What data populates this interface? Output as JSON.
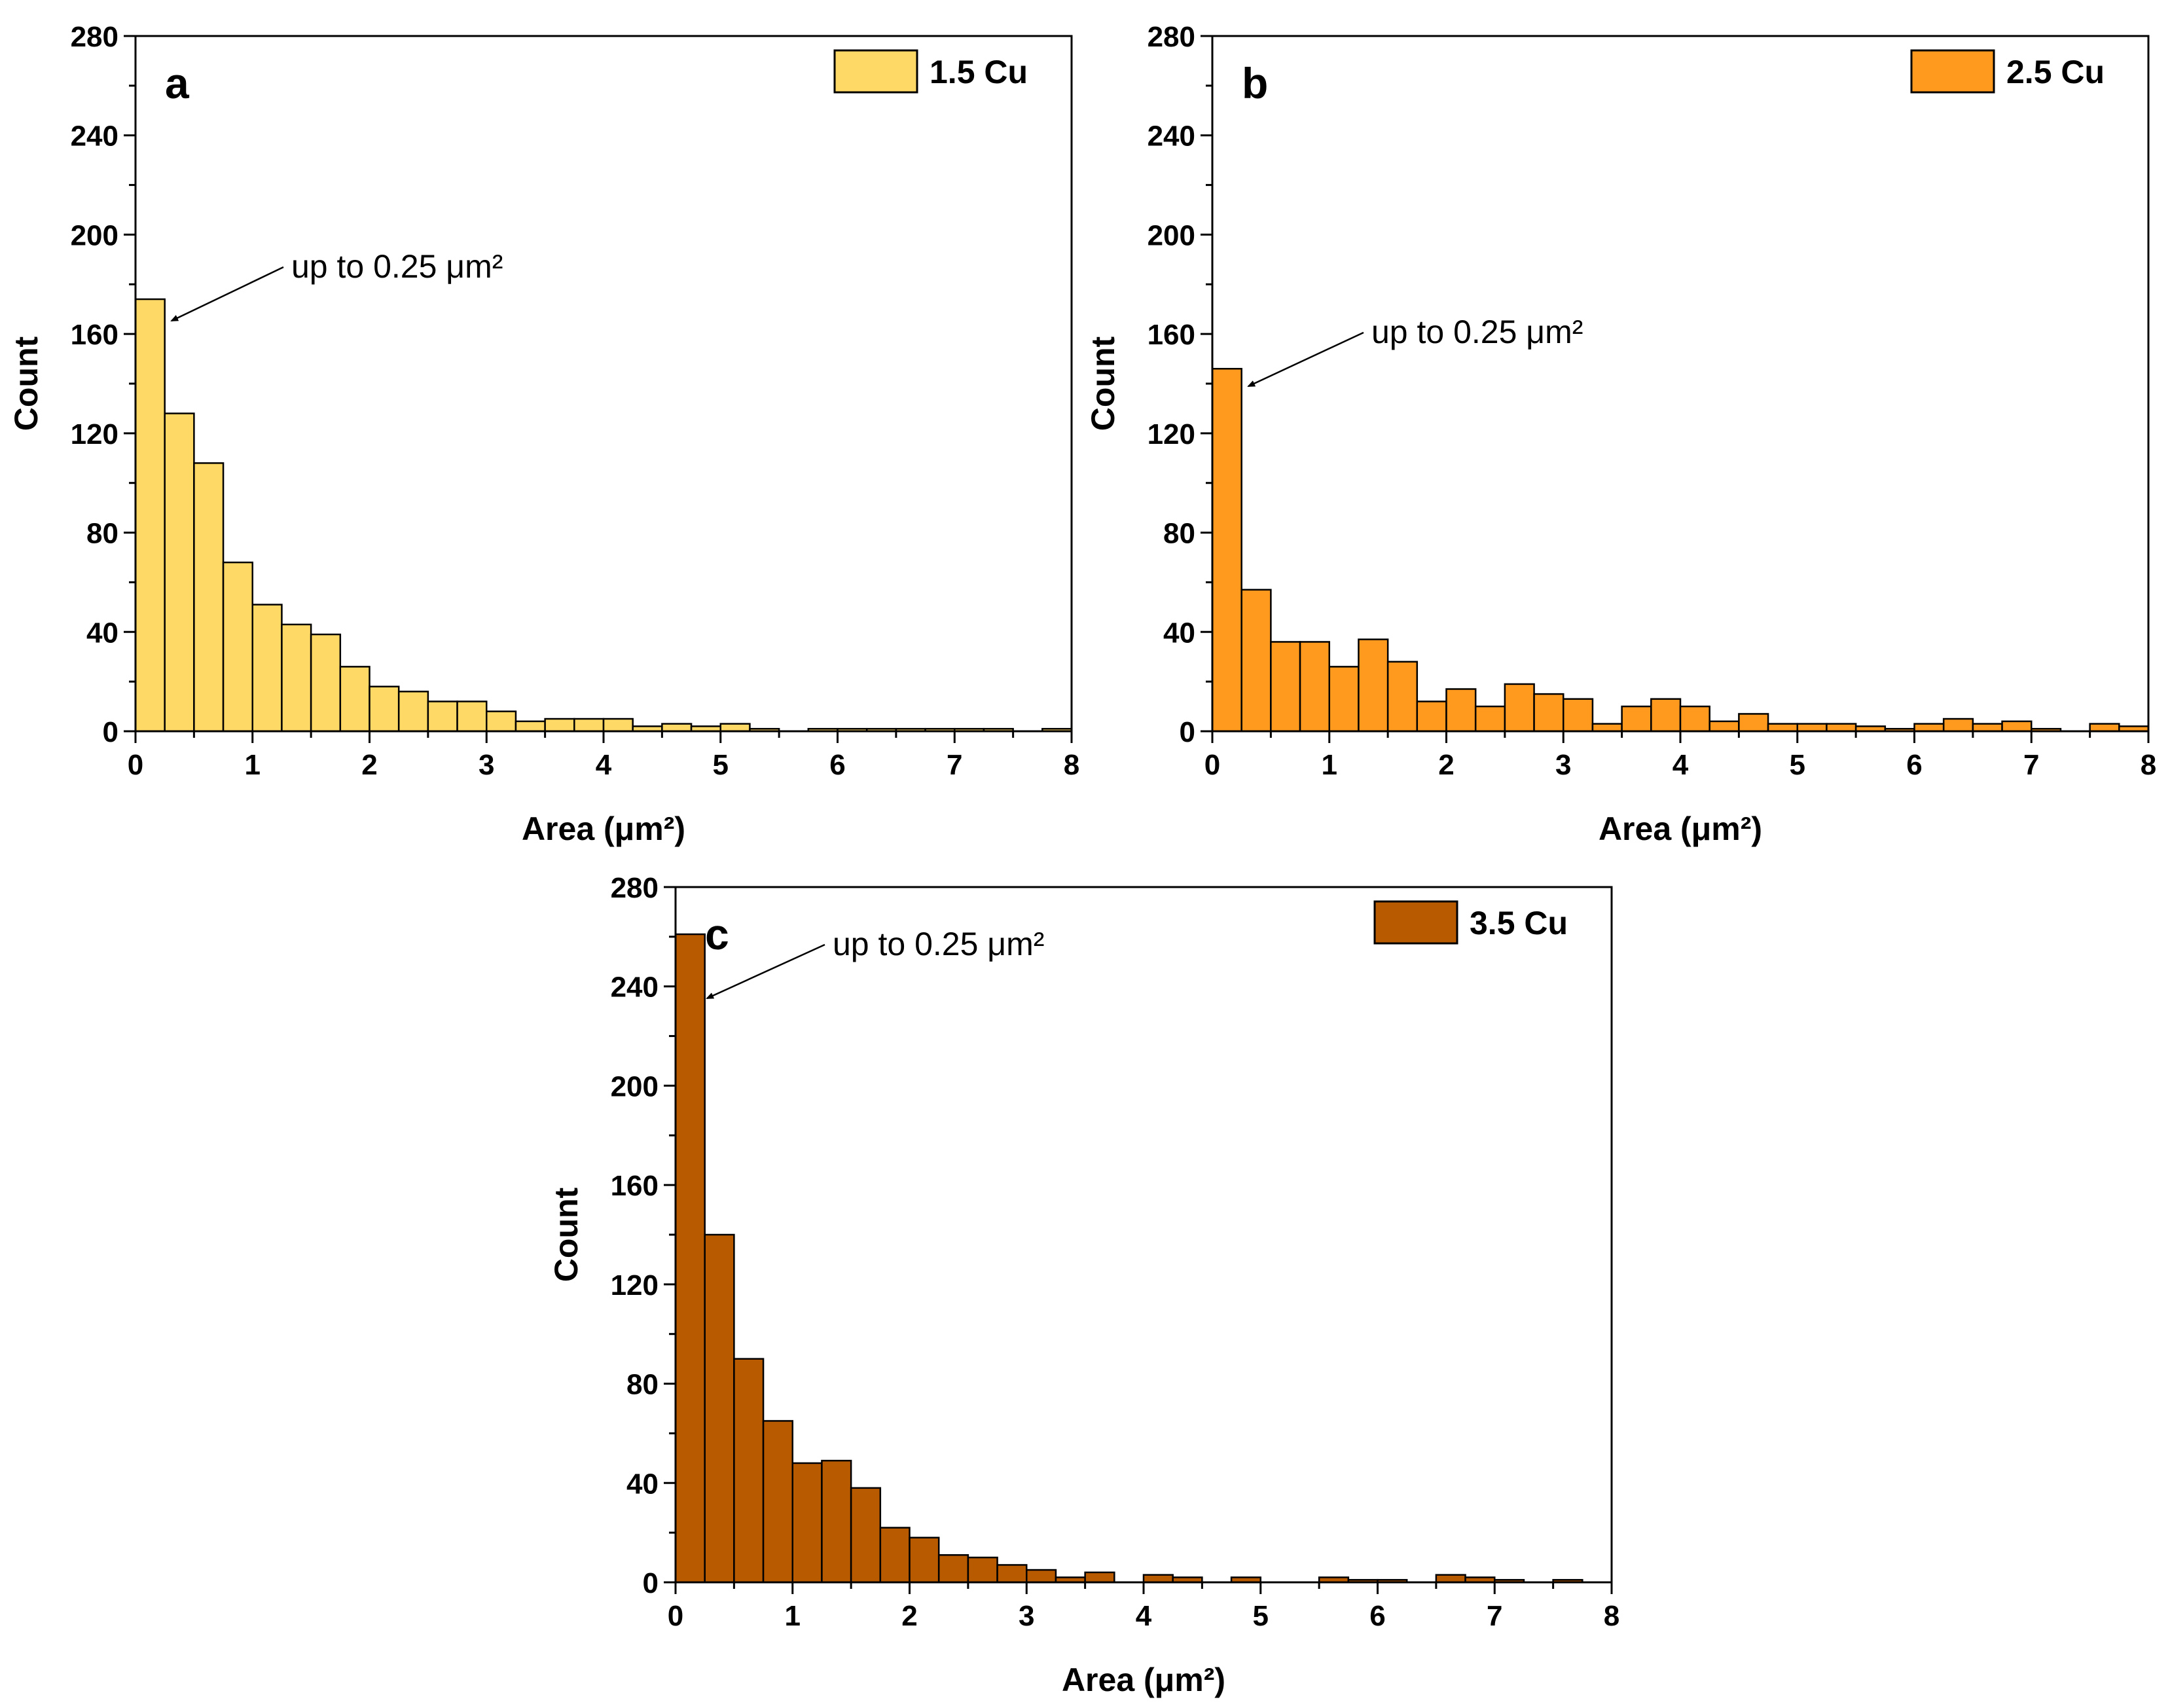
{
  "chart_data": [
    {
      "type": "bar",
      "panel": "a",
      "legend": "1.5 Cu",
      "color": "#FFD966",
      "xlabel": "Area (μm²)",
      "ylabel": "Count",
      "xlim": [
        0,
        8
      ],
      "ylim": [
        0,
        280
      ],
      "xticks": [
        "0",
        "1",
        "2",
        "3",
        "4",
        "5",
        "6",
        "7",
        "8"
      ],
      "yticks": [
        "0",
        "40",
        "80",
        "120",
        "160",
        "200",
        "240",
        "280"
      ],
      "bin_width": 0.25,
      "bin_starts": [
        0,
        0.25,
        0.5,
        0.75,
        1,
        1.25,
        1.5,
        1.75,
        2,
        2.25,
        2.5,
        2.75,
        3,
        3.25,
        3.5,
        3.75,
        4,
        4.25,
        4.5,
        4.75,
        5,
        5.25,
        5.5,
        5.75,
        6,
        6.25,
        6.5,
        6.75,
        7,
        7.25,
        7.5,
        7.75
      ],
      "values": [
        174,
        128,
        108,
        68,
        51,
        43,
        39,
        26,
        18,
        16,
        12,
        12,
        8,
        4,
        5,
        5,
        5,
        2,
        3,
        2,
        3,
        1,
        0,
        1,
        1,
        1,
        1,
        1,
        1,
        1,
        0,
        1
      ],
      "annotation": "up to 0.25 μm²",
      "legend_position": "top-right"
    },
    {
      "type": "bar",
      "panel": "b",
      "legend": "2.5 Cu",
      "color": "#FF9A1F",
      "xlabel": "Area (μm²)",
      "ylabel": "Count",
      "xlim": [
        0,
        8
      ],
      "ylim": [
        0,
        280
      ],
      "xticks": [
        "0",
        "1",
        "2",
        "3",
        "4",
        "5",
        "6",
        "7",
        "8"
      ],
      "yticks": [
        "0",
        "40",
        "80",
        "120",
        "160",
        "200",
        "240",
        "280"
      ],
      "bin_width": 0.25,
      "bin_starts": [
        0,
        0.25,
        0.5,
        0.75,
        1,
        1.25,
        1.5,
        1.75,
        2,
        2.25,
        2.5,
        2.75,
        3,
        3.25,
        3.5,
        3.75,
        4,
        4.25,
        4.5,
        4.75,
        5,
        5.25,
        5.5,
        5.75,
        6,
        6.25,
        6.5,
        6.75,
        7,
        7.25,
        7.5,
        7.75
      ],
      "values": [
        146,
        57,
        36,
        36,
        26,
        37,
        28,
        12,
        17,
        10,
        19,
        15,
        13,
        3,
        10,
        13,
        10,
        4,
        7,
        3,
        3,
        3,
        2,
        1,
        3,
        5,
        3,
        4,
        1,
        0,
        3,
        2
      ],
      "annotation": "up to 0.25 μm²",
      "legend_position": "top-right"
    },
    {
      "type": "bar",
      "panel": "c",
      "legend": "3.5 Cu",
      "color": "#B85A00",
      "xlabel": "Area (μm²)",
      "ylabel": "Count",
      "xlim": [
        0,
        8
      ],
      "ylim": [
        0,
        280
      ],
      "xticks": [
        "0",
        "1",
        "2",
        "3",
        "4",
        "5",
        "6",
        "7",
        "8"
      ],
      "yticks": [
        "0",
        "40",
        "80",
        "120",
        "160",
        "200",
        "240",
        "280"
      ],
      "bin_width": 0.25,
      "bin_starts": [
        0,
        0.25,
        0.5,
        0.75,
        1,
        1.25,
        1.5,
        1.75,
        2,
        2.25,
        2.5,
        2.75,
        3,
        3.25,
        3.5,
        3.75,
        4,
        4.25,
        4.5,
        4.75,
        5,
        5.25,
        5.5,
        5.75,
        6,
        6.25,
        6.5,
        6.75,
        7,
        7.25,
        7.5,
        7.75
      ],
      "values": [
        261,
        140,
        90,
        65,
        48,
        49,
        38,
        22,
        18,
        11,
        10,
        7,
        5,
        2,
        4,
        0,
        3,
        2,
        0,
        2,
        0,
        0,
        2,
        1,
        1,
        0,
        3,
        2,
        1,
        0,
        1,
        0
      ],
      "annotation": "up to 0.25 μm²",
      "legend_position": "top-right"
    }
  ]
}
